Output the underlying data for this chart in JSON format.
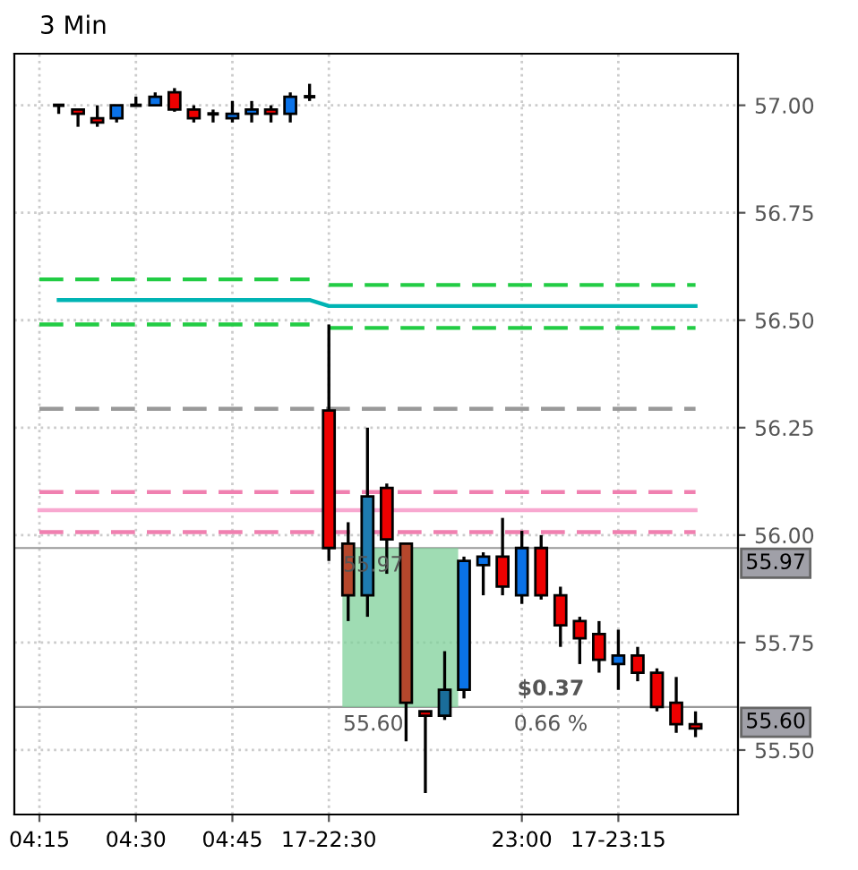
{
  "chart_data": {
    "type": "candlestick",
    "title": "3 Min",
    "categories": [
      "04:15",
      null,
      null,
      null,
      null,
      "04:30",
      null,
      null,
      null,
      null,
      "04:45",
      null,
      null,
      null,
      null,
      "17-22:30",
      null,
      null,
      null,
      null,
      null,
      null,
      null,
      null,
      null,
      "23:00",
      null,
      null,
      null,
      null,
      "17-23:15",
      null,
      null,
      null,
      null
    ],
    "ohlc": [
      null,
      [
        57.0,
        57.0,
        56.98,
        57.0
      ],
      [
        56.99,
        56.99,
        56.95,
        56.98
      ],
      [
        56.97,
        57.0,
        56.95,
        56.96
      ],
      [
        56.97,
        57.0,
        56.96,
        57.0
      ],
      [
        57.0,
        57.02,
        57.0,
        57.0
      ],
      [
        57.0,
        57.03,
        57.0,
        57.02
      ],
      [
        57.03,
        57.04,
        56.985,
        56.99
      ],
      [
        56.99,
        57.0,
        56.96,
        56.97
      ],
      [
        56.98,
        56.99,
        56.96,
        56.98
      ],
      [
        56.97,
        57.01,
        56.96,
        56.98
      ],
      [
        56.98,
        57.01,
        56.96,
        56.99
      ],
      [
        56.99,
        57.0,
        56.96,
        56.98
      ],
      [
        56.98,
        57.03,
        56.96,
        57.02
      ],
      [
        57.02,
        57.05,
        57.01,
        57.02
      ],
      [
        56.29,
        56.49,
        55.94,
        55.97
      ],
      [
        55.98,
        56.03,
        55.8,
        55.86
      ],
      [
        55.86,
        56.25,
        55.81,
        56.09
      ],
      [
        56.11,
        56.12,
        55.91,
        55.99
      ],
      [
        55.98,
        55.98,
        55.52,
        55.61
      ],
      [
        55.59,
        55.59,
        55.4,
        55.58
      ],
      [
        55.58,
        55.73,
        55.57,
        55.64
      ],
      [
        55.64,
        55.95,
        55.62,
        55.94
      ],
      [
        55.93,
        55.96,
        55.86,
        55.95
      ],
      [
        55.95,
        56.04,
        55.86,
        55.88
      ],
      [
        55.86,
        56.01,
        55.84,
        55.97
      ],
      [
        55.97,
        56.0,
        55.85,
        55.86
      ],
      [
        55.86,
        55.88,
        55.74,
        55.79
      ],
      [
        55.8,
        55.81,
        55.7,
        55.76
      ],
      [
        55.77,
        55.8,
        55.68,
        55.71
      ],
      [
        55.7,
        55.78,
        55.64,
        55.72
      ],
      [
        55.72,
        55.74,
        55.66,
        55.68
      ],
      [
        55.68,
        55.69,
        55.59,
        55.6
      ],
      [
        55.61,
        55.67,
        55.54,
        55.56
      ],
      [
        55.56,
        55.59,
        55.53,
        55.55
      ]
    ],
    "colors": [
      null,
      "#000000",
      "#ee0000",
      "#ee0000",
      "#0a72e8",
      "#000000",
      "#0a72e8",
      "#ee0000",
      "#ee0000",
      "#000000",
      "#0a72e8",
      "#0a72e8",
      "#ee0000",
      "#0a72e8",
      "#000000",
      "#ee0000",
      "#b5472c",
      "#1e7bb0",
      "#ee0000",
      "#b5472c",
      "#ee0000",
      "#1a6d9a",
      "#0a72e8",
      "#0a72e8",
      "#ee0000",
      "#0a72e8",
      "#ee0000",
      "#ee0000",
      "#ee0000",
      "#ee0000",
      "#0a72e8",
      "#ee0000",
      "#ee0000",
      "#ee0000",
      "#ee0000"
    ],
    "series": [
      {
        "type": "line",
        "color": "#22cc44",
        "line_style": "dashed",
        "values": [
          56.595,
          56.595,
          56.595,
          56.595,
          56.595,
          56.595,
          56.595,
          56.595,
          56.595,
          56.595,
          56.595,
          56.595,
          56.595,
          56.595,
          56.595,
          null,
          null,
          null,
          null,
          null,
          null,
          null,
          null,
          null,
          null,
          null,
          null,
          null,
          null,
          null,
          null,
          null,
          null,
          null,
          null
        ]
      },
      {
        "type": "line",
        "color": "#22cc44",
        "line_style": "dashed",
        "values": [
          null,
          null,
          null,
          null,
          null,
          null,
          null,
          null,
          null,
          null,
          null,
          null,
          null,
          null,
          null,
          56.582,
          56.582,
          56.582,
          56.582,
          56.582,
          56.582,
          56.582,
          56.582,
          56.582,
          56.582,
          56.582,
          56.582,
          56.582,
          56.582,
          56.582,
          56.582,
          56.582,
          56.582,
          56.582,
          56.582
        ]
      },
      {
        "type": "line",
        "color": "#22cc44",
        "line_style": "dashed",
        "values": [
          56.49,
          56.49,
          56.49,
          56.49,
          56.49,
          56.49,
          56.49,
          56.49,
          56.49,
          56.49,
          56.49,
          56.49,
          56.49,
          56.49,
          56.49,
          null,
          null,
          null,
          null,
          null,
          null,
          null,
          null,
          null,
          null,
          null,
          null,
          null,
          null,
          null,
          null,
          null,
          null,
          null,
          null
        ]
      },
      {
        "type": "line",
        "color": "#22cc44",
        "line_style": "dashed",
        "values": [
          null,
          null,
          null,
          null,
          null,
          null,
          null,
          null,
          null,
          null,
          null,
          null,
          null,
          null,
          null,
          56.482,
          56.482,
          56.482,
          56.482,
          56.482,
          56.482,
          56.482,
          56.482,
          56.482,
          56.482,
          56.482,
          56.482,
          56.482,
          56.482,
          56.482,
          56.482,
          56.482,
          56.482,
          56.482,
          56.482
        ]
      },
      {
        "type": "line",
        "color": "#00b4b4",
        "line_style": "solid",
        "values": [
          null,
          56.547,
          56.547,
          56.547,
          56.547,
          56.547,
          56.547,
          56.547,
          56.547,
          56.547,
          56.547,
          56.547,
          56.547,
          56.547,
          56.547,
          56.533,
          56.533,
          56.533,
          56.533,
          56.533,
          56.533,
          56.533,
          56.533,
          56.533,
          56.533,
          56.533,
          56.533,
          56.533,
          56.533,
          56.533,
          56.533,
          56.533,
          56.533,
          56.533,
          56.533
        ]
      },
      {
        "type": "line",
        "color": "#999999",
        "line_style": "dashed",
        "values": [
          56.294,
          56.294,
          56.294,
          56.294,
          56.294,
          56.294,
          56.294,
          56.294,
          56.294,
          56.294,
          56.294,
          56.294,
          56.294,
          56.294,
          56.294,
          56.294,
          56.294,
          56.294,
          56.294,
          56.294,
          56.294,
          56.294,
          56.294,
          56.294,
          56.294,
          56.294,
          56.294,
          56.294,
          56.294,
          56.294,
          56.294,
          56.294,
          56.294,
          56.294,
          56.294
        ]
      },
      {
        "type": "line",
        "color": "#f080b0",
        "line_style": "dashed",
        "values": [
          56.1,
          56.1,
          56.1,
          56.1,
          56.1,
          56.1,
          56.1,
          56.1,
          56.1,
          56.1,
          56.1,
          56.1,
          56.1,
          56.1,
          56.1,
          56.1,
          56.1,
          56.1,
          56.1,
          56.1,
          56.1,
          56.1,
          56.1,
          56.1,
          56.1,
          56.1,
          56.1,
          56.1,
          56.1,
          56.1,
          56.1,
          56.1,
          56.1,
          56.1,
          56.1
        ]
      },
      {
        "type": "line",
        "color": "#f8a8d0",
        "line_style": "solid",
        "values": [
          56.058,
          56.058,
          56.058,
          56.058,
          56.058,
          56.058,
          56.058,
          56.058,
          56.058,
          56.058,
          56.058,
          56.058,
          56.058,
          56.058,
          56.058,
          56.058,
          56.058,
          56.058,
          56.058,
          56.058,
          56.058,
          56.058,
          56.058,
          56.058,
          56.058,
          56.058,
          56.058,
          56.058,
          56.058,
          56.058,
          56.058,
          56.058,
          56.058,
          56.058,
          56.058
        ]
      },
      {
        "type": "line",
        "color": "#f080b0",
        "line_style": "dashed",
        "values": [
          56.007,
          56.007,
          56.007,
          56.007,
          56.007,
          56.007,
          56.007,
          56.007,
          56.007,
          56.007,
          56.007,
          56.007,
          56.007,
          56.007,
          56.007,
          56.007,
          56.007,
          56.007,
          56.007,
          56.007,
          56.007,
          56.007,
          56.007,
          56.007,
          56.007,
          56.007,
          56.007,
          56.007,
          56.007,
          56.007,
          56.007,
          56.007,
          56.007,
          56.007,
          56.007
        ]
      }
    ],
    "ylim": [
      55.35,
      57.12
    ],
    "yticks": [
      {
        "value": 55.5,
        "label": "55.50"
      },
      {
        "value": 55.75,
        "label": "55.75"
      },
      {
        "value": 56.0,
        "label": "56.00"
      },
      {
        "value": 56.25,
        "label": "56.25"
      },
      {
        "value": 56.5,
        "label": "56.50"
      },
      {
        "value": 56.75,
        "label": "56.75"
      },
      {
        "value": 57.0,
        "label": "57.00"
      }
    ],
    "ref_lines": [
      {
        "axis": "y",
        "value": 55.97,
        "label": "55.97",
        "color": "#999999"
      },
      {
        "axis": "y",
        "value": 55.6,
        "label": "55.60",
        "color": "#999999"
      }
    ],
    "annotations": [
      {
        "text": "55.97",
        "y": 55.97
      },
      {
        "text": "55.60",
        "y": 55.6
      },
      "$0.37",
      "0.66 %"
    ],
    "grid": true
  }
}
